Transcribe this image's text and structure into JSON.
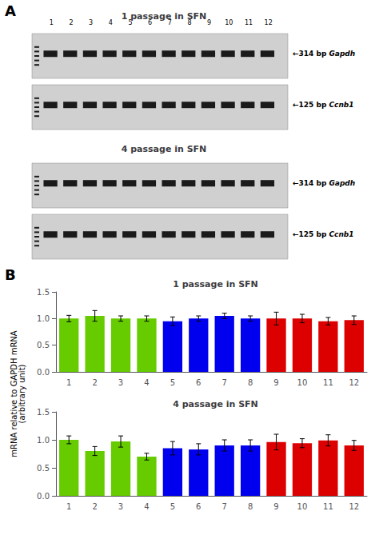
{
  "chart_data": [
    {
      "type": "gel",
      "title": "1 passage in SFN",
      "categories": [
        "1",
        "2",
        "3",
        "4",
        "5",
        "6",
        "7",
        "8",
        "9",
        "10",
        "11",
        "12"
      ],
      "annotations": [
        {
          "text": "←314 bp ",
          "italic": "Gapdh"
        },
        {
          "text": "←125 bp ",
          "italic": "Ccnb1"
        }
      ]
    },
    {
      "type": "gel",
      "title": "4 passage in SFN",
      "annotations": [
        {
          "text": "←314 bp ",
          "italic": "Gapdh"
        },
        {
          "text": "←125 bp ",
          "italic": "Ccnb1"
        }
      ]
    },
    {
      "type": "bar",
      "title": "1 passage in SFN",
      "ylabel": "mRNA relative to GAPDH mRNA\n(arbitrary unit)",
      "categories": [
        "1",
        "2",
        "3",
        "4",
        "5",
        "6",
        "7",
        "8",
        "9",
        "10",
        "11",
        "12"
      ],
      "values": [
        1.0,
        1.05,
        1.0,
        1.0,
        0.95,
        1.0,
        1.05,
        1.0,
        1.0,
        1.0,
        0.95,
        0.97
      ],
      "errors": [
        0.06,
        0.1,
        0.05,
        0.05,
        0.08,
        0.05,
        0.05,
        0.05,
        0.12,
        0.08,
        0.07,
        0.08
      ],
      "colors": [
        "#66cc00",
        "#66cc00",
        "#66cc00",
        "#66cc00",
        "#0000ee",
        "#0000ee",
        "#0000ee",
        "#0000ee",
        "#dd0000",
        "#dd0000",
        "#dd0000",
        "#dd0000"
      ],
      "ylim": [
        0.0,
        1.5
      ],
      "yticks": [
        {
          "value": 0.0,
          "label": "0.0"
        },
        0.5,
        {
          "value": 1.0,
          "label": "1.0"
        },
        1.5
      ],
      "grid": false
    },
    {
      "type": "bar",
      "title": "4 passage in SFN",
      "categories": [
        "1",
        "2",
        "3",
        "4",
        "5",
        "6",
        "7",
        "8",
        "9",
        "10",
        "11",
        "12"
      ],
      "values": [
        1.0,
        0.8,
        0.97,
        0.7,
        0.85,
        0.83,
        0.9,
        0.9,
        0.96,
        0.94,
        0.99,
        0.9
      ],
      "errors": [
        0.07,
        0.08,
        0.1,
        0.06,
        0.12,
        0.1,
        0.1,
        0.1,
        0.14,
        0.08,
        0.1,
        0.09
      ],
      "colors": [
        "#66cc00",
        "#66cc00",
        "#66cc00",
        "#66cc00",
        "#0000ee",
        "#0000ee",
        "#0000ee",
        "#0000ee",
        "#dd0000",
        "#dd0000",
        "#dd0000",
        "#dd0000"
      ],
      "ylim": [
        0.0,
        1.5
      ],
      "yticks": [
        {
          "value": 0.0,
          "label": "0.0"
        },
        0.5,
        {
          "value": 1.0,
          "label": "1.0"
        },
        1.5
      ],
      "grid": false
    }
  ],
  "annotations": [
    "A",
    "B"
  ]
}
